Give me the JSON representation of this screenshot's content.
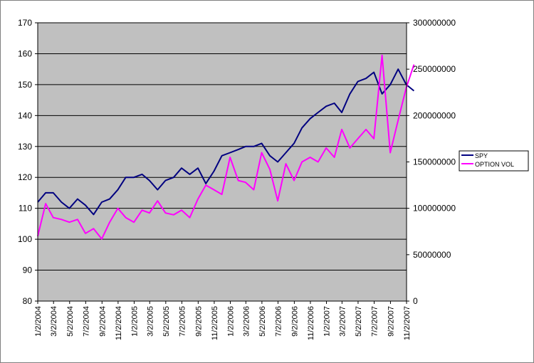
{
  "chart_data": {
    "type": "line",
    "title": "",
    "xlabel": "",
    "ylabel": "",
    "y2label": "",
    "x_ticks": [
      "1/2/2004",
      "3/2/2004",
      "5/2/2004",
      "7/2/2004",
      "9/2/2004",
      "11/2/2004",
      "1/2/2005",
      "3/2/2005",
      "5/2/2005",
      "7/2/2005",
      "9/2/2005",
      "11/2/2005",
      "1/2/2006",
      "3/2/2006",
      "5/2/2006",
      "7/2/2006",
      "9/2/2006",
      "11/2/2006",
      "1/2/2007",
      "3/2/2007",
      "5/2/2007",
      "7/2/2007",
      "9/2/2007",
      "11/2/2007"
    ],
    "ylim": [
      80,
      170
    ],
    "y_ticks": [
      "80",
      "90",
      "100",
      "110",
      "120",
      "130",
      "140",
      "150",
      "160",
      "170"
    ],
    "y2lim": [
      0,
      300000000
    ],
    "y2_ticks": [
      "0",
      "50000000",
      "100000000",
      "150000000",
      "200000000",
      "250000000",
      "300000000"
    ],
    "grid": true,
    "legend_position": "right",
    "series": [
      {
        "name": "SPY",
        "axis": "left",
        "color": "#000080",
        "x": [
          "1/2/2004",
          "2/1/2004",
          "3/1/2004",
          "4/1/2004",
          "5/1/2004",
          "6/1/2004",
          "7/1/2004",
          "8/1/2004",
          "9/1/2004",
          "10/1/2004",
          "11/1/2004",
          "12/1/2004",
          "1/1/2005",
          "2/1/2005",
          "3/1/2005",
          "4/1/2005",
          "5/1/2005",
          "6/1/2005",
          "7/1/2005",
          "8/1/2005",
          "9/1/2005",
          "10/1/2005",
          "11/1/2005",
          "12/1/2005",
          "1/1/2006",
          "2/1/2006",
          "3/1/2006",
          "4/1/2006",
          "5/1/2006",
          "6/1/2006",
          "7/1/2006",
          "8/1/2006",
          "9/1/2006",
          "10/1/2006",
          "11/1/2006",
          "12/1/2006",
          "1/1/2007",
          "2/1/2007",
          "3/1/2007",
          "4/1/2007",
          "5/1/2007",
          "6/1/2007",
          "7/1/2007",
          "8/1/2007",
          "9/1/2007",
          "10/1/2007",
          "11/1/2007",
          "11/30/2007"
        ],
        "values": [
          112,
          115,
          115,
          112,
          110,
          113,
          111,
          108,
          112,
          113,
          116,
          120,
          120,
          121,
          119,
          116,
          119,
          120,
          123,
          121,
          123,
          118,
          122,
          127,
          128,
          129,
          130,
          130,
          131,
          127,
          125,
          128,
          131,
          136,
          139,
          141,
          143,
          144,
          141,
          147,
          151,
          152,
          154,
          147,
          150,
          155,
          150,
          148
        ]
      },
      {
        "name": "OPTION VOL",
        "axis": "right",
        "color": "#ff00ff",
        "x": [
          "1/2/2004",
          "2/1/2004",
          "3/1/2004",
          "4/1/2004",
          "5/1/2004",
          "6/1/2004",
          "7/1/2004",
          "8/1/2004",
          "9/1/2004",
          "10/1/2004",
          "11/1/2004",
          "12/1/2004",
          "1/1/2005",
          "2/1/2005",
          "3/1/2005",
          "4/1/2005",
          "5/1/2005",
          "6/1/2005",
          "7/1/2005",
          "8/1/2005",
          "9/1/2005",
          "10/1/2005",
          "11/1/2005",
          "12/1/2005",
          "1/1/2006",
          "2/1/2006",
          "3/1/2006",
          "4/1/2006",
          "5/1/2006",
          "6/1/2006",
          "7/1/2006",
          "8/1/2006",
          "9/1/2006",
          "10/1/2006",
          "11/1/2006",
          "12/1/2006",
          "1/1/2007",
          "2/1/2007",
          "3/1/2007",
          "4/1/2007",
          "5/1/2007",
          "6/1/2007",
          "7/1/2007",
          "8/1/2007",
          "9/1/2007",
          "10/1/2007",
          "11/1/2007",
          "11/30/2007"
        ],
        "values": [
          70000000,
          105000000,
          90000000,
          88000000,
          85000000,
          88000000,
          73000000,
          78000000,
          67000000,
          85000000,
          100000000,
          90000000,
          85000000,
          98000000,
          95000000,
          108000000,
          95000000,
          93000000,
          98000000,
          90000000,
          110000000,
          125000000,
          120000000,
          115000000,
          155000000,
          130000000,
          128000000,
          120000000,
          160000000,
          142000000,
          108000000,
          148000000,
          130000000,
          150000000,
          155000000,
          150000000,
          165000000,
          155000000,
          185000000,
          165000000,
          175000000,
          185000000,
          175000000,
          265000000,
          160000000,
          195000000,
          230000000,
          255000000
        ]
      }
    ]
  }
}
